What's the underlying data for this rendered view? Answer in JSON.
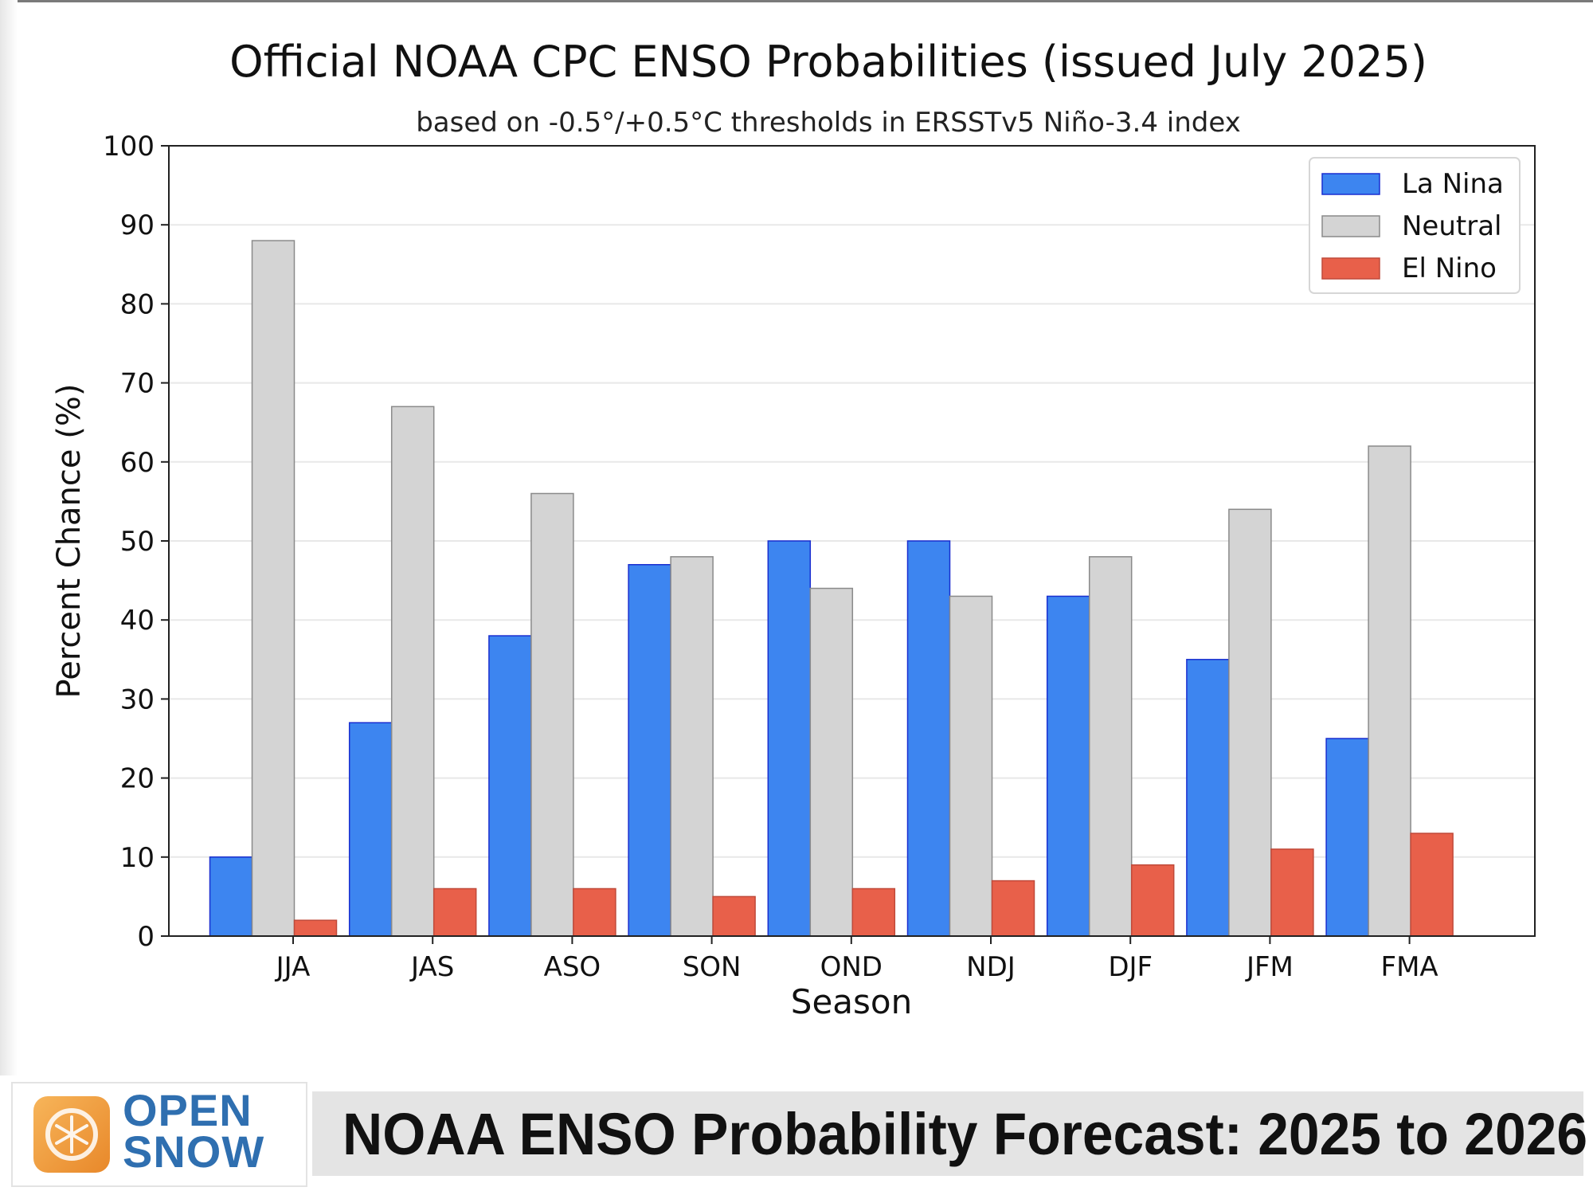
{
  "chart_data": {
    "type": "bar",
    "title": "Official NOAA CPC ENSO Probabilities (issued July 2025)",
    "subtitle": "based on -0.5°/+0.5°C thresholds in ERSSTv5 Niño-3.4 index",
    "xlabel": "Season",
    "ylabel": "Percent Chance (%)",
    "ylim": [
      0,
      100
    ],
    "yticks": [
      0,
      10,
      20,
      30,
      40,
      50,
      60,
      70,
      80,
      90,
      100
    ],
    "grid": true,
    "legend_position": "top-right",
    "categories": [
      "JJA",
      "JAS",
      "ASO",
      "SON",
      "OND",
      "NDJ",
      "DJF",
      "JFM",
      "FMA"
    ],
    "series": [
      {
        "name": "La Nina",
        "color": "#3d85f0",
        "edge": "#1a2fd0",
        "values": [
          10,
          27,
          38,
          47,
          50,
          50,
          43,
          35,
          25
        ]
      },
      {
        "name": "Neutral",
        "color": "#d4d4d4",
        "edge": "#8a8a8a",
        "values": [
          88,
          67,
          56,
          48,
          44,
          43,
          48,
          54,
          62
        ]
      },
      {
        "name": "El Nino",
        "color": "#e8604a",
        "edge": "#c04a3a",
        "values": [
          2,
          6,
          6,
          5,
          6,
          7,
          9,
          11,
          13
        ]
      }
    ]
  },
  "footer": {
    "logo_line1": "OPEN",
    "logo_line2": "SNOW",
    "banner": "NOAA ENSO Probability Forecast: 2025 to 2026"
  }
}
